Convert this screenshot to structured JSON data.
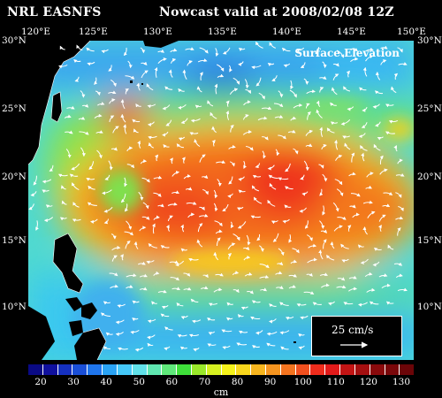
{
  "header": {
    "left": "NRL EASNFS",
    "right": "Nowcast   valid at 2008/02/08 12Z"
  },
  "map": {
    "title": "Surface Elevation",
    "lon_labels": [
      "120°E",
      "125°E",
      "130°E",
      "135°E",
      "140°E",
      "145°E",
      "150°E"
    ],
    "lat_labels": [
      "30°N",
      "25°N",
      "20°N",
      "15°N",
      "10°N"
    ],
    "scale_label": "25 cm/s"
  },
  "colorbar": {
    "ticks": [
      "20",
      "30",
      "40",
      "50",
      "60",
      "70",
      "80",
      "90",
      "100",
      "110",
      "120",
      "130"
    ],
    "unit": "cm",
    "colors": [
      "#0a0a84",
      "#10109e",
      "#1530c0",
      "#1a4fd8",
      "#1f75ec",
      "#2aa3f4",
      "#45c8f8",
      "#60e0e8",
      "#5fe6b0",
      "#5fe87a",
      "#3fe03a",
      "#9ae82a",
      "#d6f020",
      "#f5f21a",
      "#f8d61c",
      "#f7b51e",
      "#f5941f",
      "#f3731f",
      "#f14f1e",
      "#ef2c1c",
      "#e21a1a",
      "#c21414",
      "#a50f10",
      "#8a0a0c",
      "#7a070a",
      "#6b0508"
    ]
  }
}
